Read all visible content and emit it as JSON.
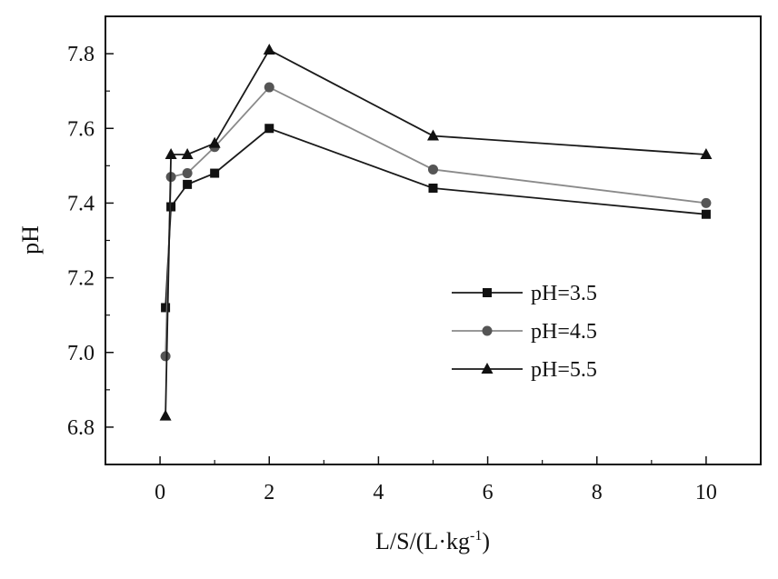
{
  "chart_data": {
    "type": "line",
    "title": "",
    "xlabel": "L/S/(L·kg",
    "xlabel_sup": "-1",
    "xlabel_close": ")",
    "ylabel": "pH",
    "xlim": [
      -1,
      11
    ],
    "ylim": [
      6.7,
      7.9
    ],
    "xticks": [
      0,
      2,
      4,
      6,
      8,
      10
    ],
    "yticks": [
      6.8,
      7.0,
      7.2,
      7.4,
      7.6,
      7.8
    ],
    "xtick_labels": [
      "0",
      "2",
      "4",
      "6",
      "8",
      "10"
    ],
    "ytick_labels": [
      "6.8",
      "7.0",
      "7.2",
      "7.4",
      "7.6",
      "7.8"
    ],
    "grid": false,
    "legend_position": "center-right",
    "x": [
      0.1,
      0.2,
      0.5,
      1,
      2,
      5,
      10
    ],
    "series": [
      {
        "name": "pH=3.5",
        "marker": "square",
        "line_color": "#1a1a1a",
        "marker_color": "#111111",
        "values": [
          7.12,
          7.39,
          7.45,
          7.48,
          7.6,
          7.44,
          7.37
        ]
      },
      {
        "name": "pH=4.5",
        "marker": "circle",
        "line_color": "#8a8a8a",
        "marker_color": "#555555",
        "values": [
          6.99,
          7.47,
          7.48,
          7.55,
          7.71,
          7.49,
          7.4
        ]
      },
      {
        "name": "pH=5.5",
        "marker": "triangle",
        "line_color": "#1a1a1a",
        "marker_color": "#111111",
        "values": [
          6.83,
          7.53,
          7.53,
          7.56,
          7.81,
          7.58,
          7.53
        ]
      }
    ]
  }
}
